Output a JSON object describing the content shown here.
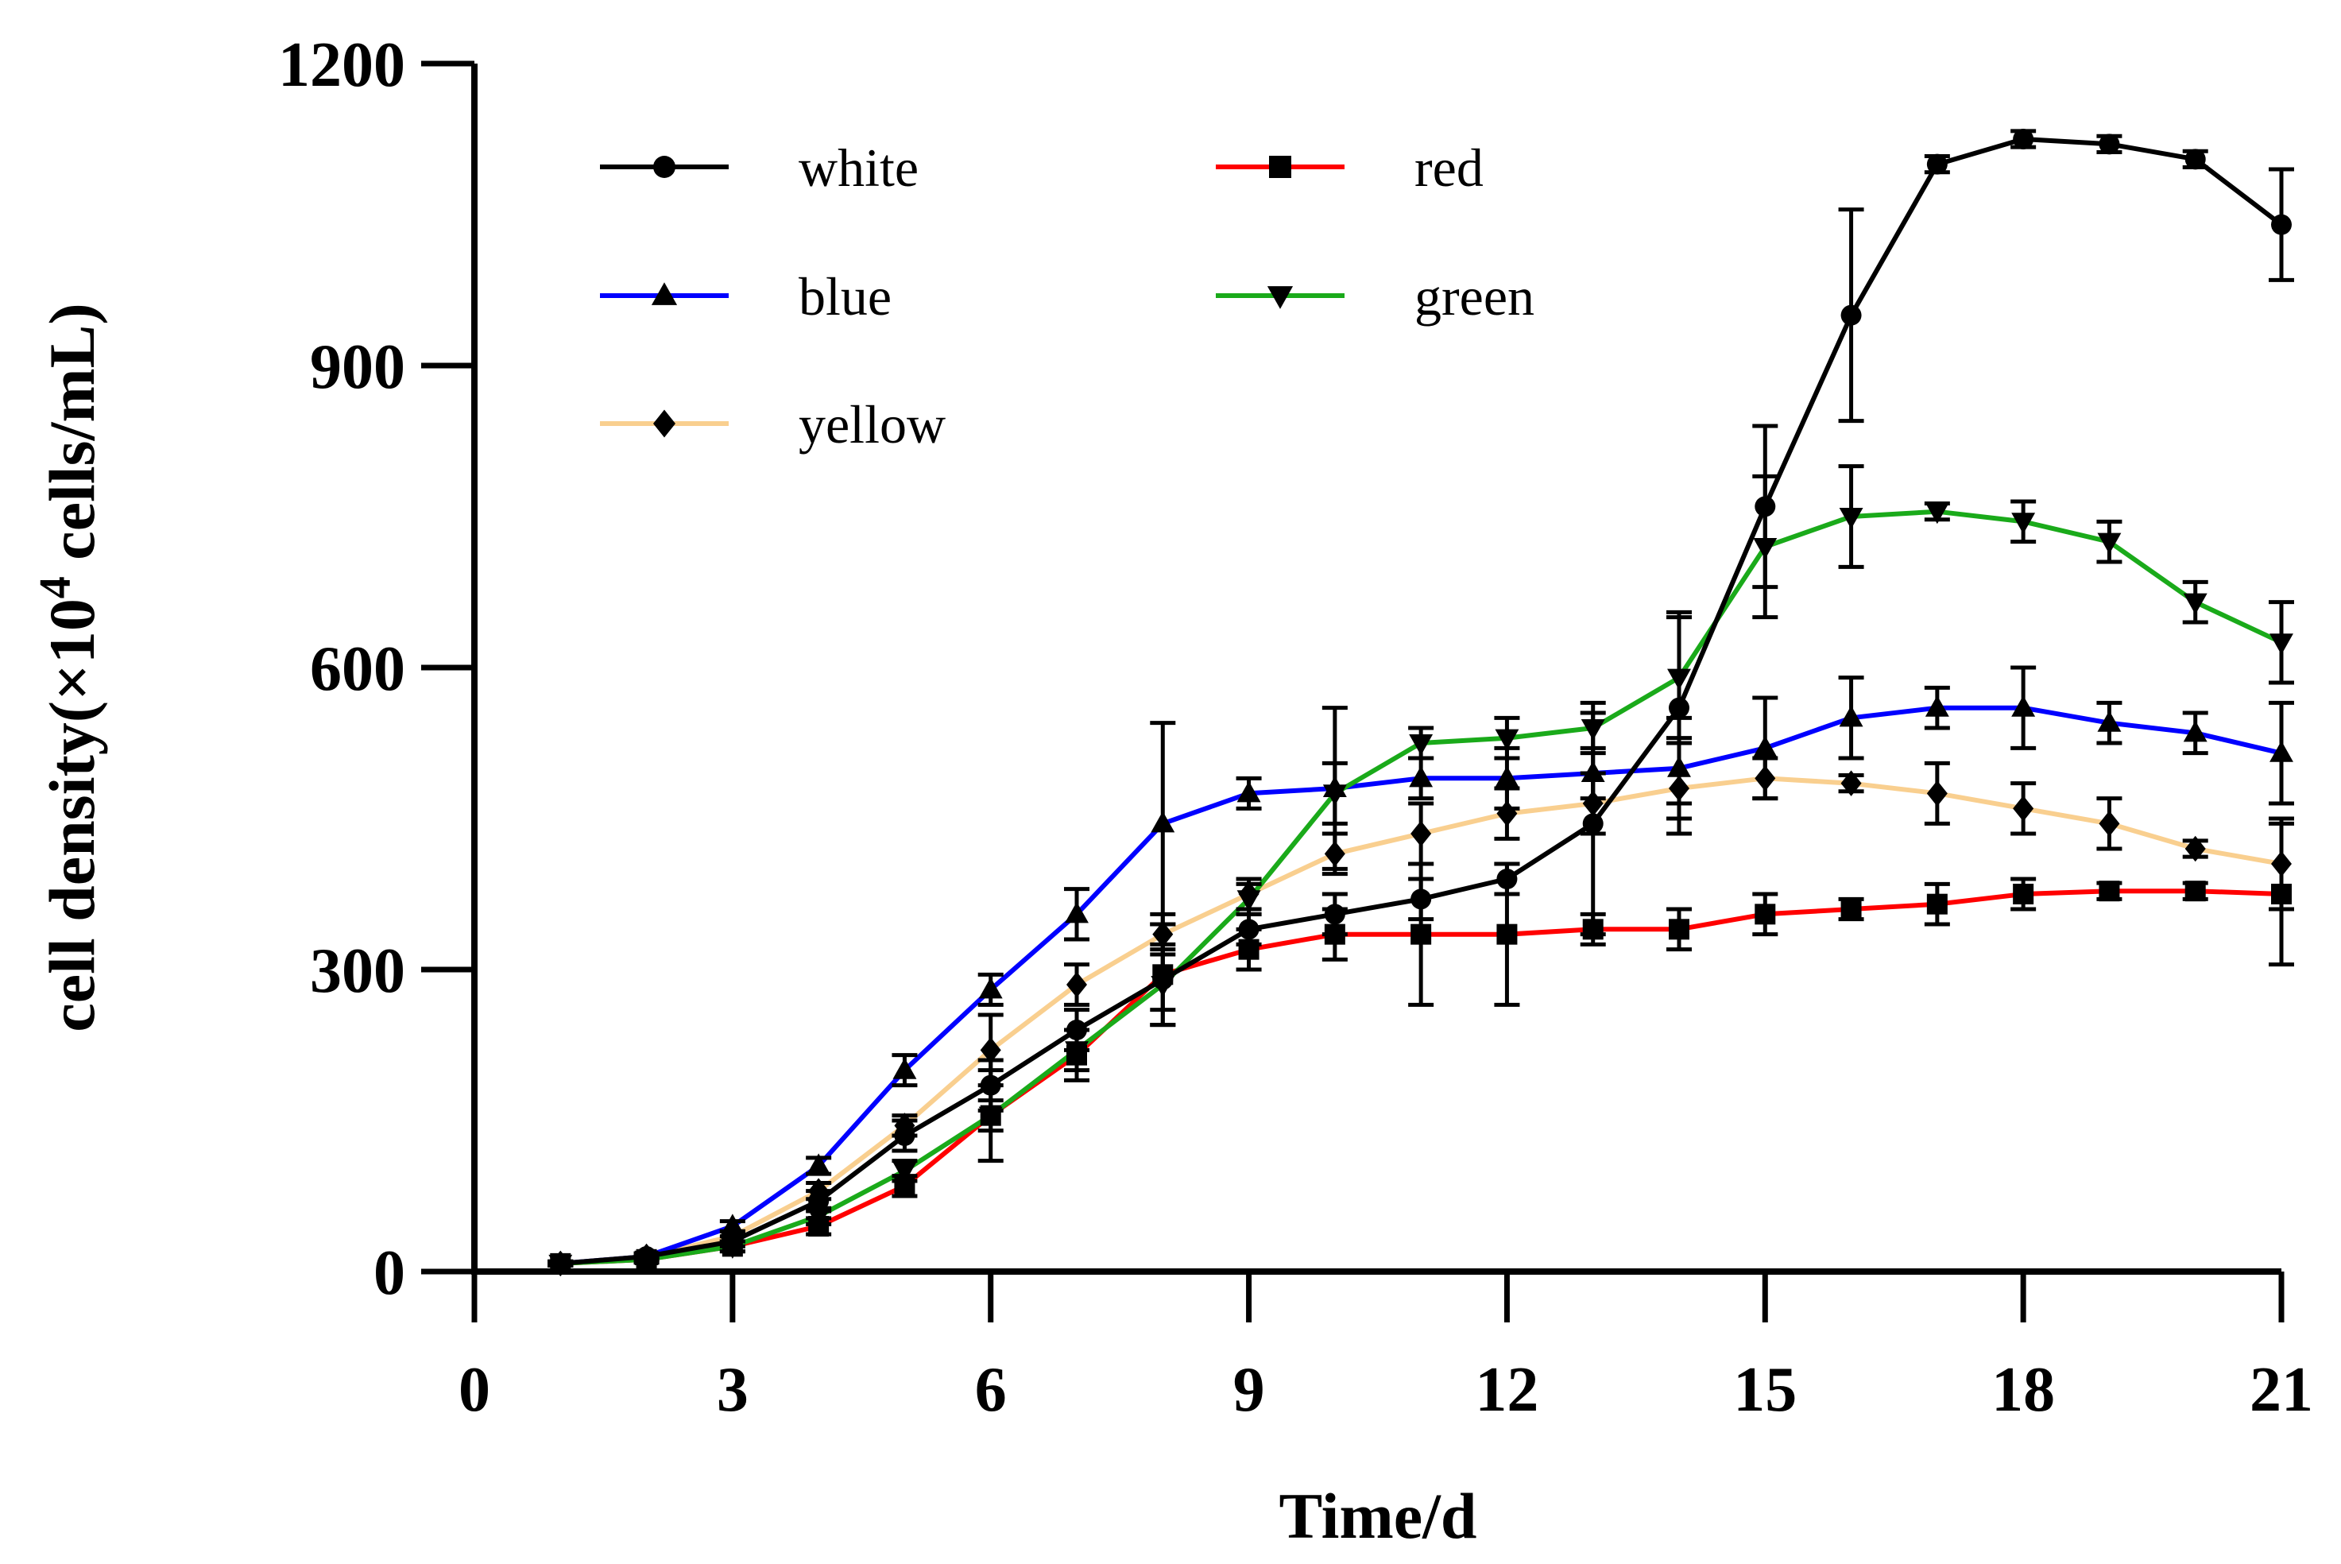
{
  "chart_data": {
    "type": "line",
    "title": "",
    "xlabel": "Time/d",
    "ylabel_main": "cell density(×10",
    "ylabel_sup": "4",
    "ylabel_tail": " cells/mL)",
    "xlim": [
      0,
      21
    ],
    "ylim": [
      0,
      1200
    ],
    "xticks": [
      "0",
      "3",
      "6",
      "9",
      "12",
      "15",
      "18",
      "21"
    ],
    "xtick_values": [
      0,
      3,
      6,
      9,
      12,
      15,
      18,
      21
    ],
    "yticks": [
      "0",
      "300",
      "600",
      "900",
      "1200"
    ],
    "ytick_values": [
      0,
      300,
      600,
      900,
      1200
    ],
    "grid": false,
    "legend_position": "top-left",
    "x": [
      1,
      2,
      3,
      4,
      5,
      6,
      7,
      8,
      9,
      10,
      11,
      12,
      13,
      14,
      15,
      16,
      17,
      18,
      19,
      20,
      21
    ],
    "series": [
      {
        "name": "white",
        "color": "#000000",
        "marker": "circle",
        "values": [
          8,
          15,
          30,
          70,
          135,
          185,
          240,
          290,
          340,
          355,
          370,
          390,
          445,
          560,
          760,
          950,
          1100,
          1125,
          1120,
          1105,
          1040
        ],
        "errors": [
          2,
          3,
          5,
          10,
          15,
          25,
          20,
          30,
          15,
          20,
          20,
          15,
          110,
          95,
          80,
          105,
          8,
          8,
          8,
          8,
          55
        ]
      },
      {
        "name": "red",
        "color": "#ff0000",
        "marker": "square",
        "values": [
          8,
          12,
          25,
          45,
          85,
          155,
          215,
          295,
          320,
          335,
          335,
          335,
          340,
          340,
          355,
          360,
          365,
          375,
          378,
          378,
          375
        ],
        "errors": [
          2,
          3,
          5,
          8,
          10,
          45,
          25,
          50,
          20,
          25,
          70,
          70,
          15,
          20,
          20,
          10,
          20,
          15,
          8,
          8,
          70
        ]
      },
      {
        "name": "blue",
        "color": "#0000ff",
        "marker": "triangle-up",
        "values": [
          8,
          15,
          45,
          105,
          200,
          280,
          355,
          445,
          475,
          480,
          490,
          490,
          495,
          500,
          520,
          550,
          560,
          560,
          545,
          535,
          515
        ],
        "errors": [
          2,
          3,
          5,
          8,
          15,
          15,
          25,
          100,
          15,
          80,
          20,
          30,
          25,
          50,
          50,
          40,
          20,
          40,
          20,
          20,
          50
        ]
      },
      {
        "name": "green",
        "color": "#1aaa1a",
        "marker": "triangle-down",
        "values": [
          8,
          12,
          25,
          55,
          100,
          155,
          220,
          285,
          370,
          475,
          525,
          530,
          540,
          590,
          720,
          750,
          755,
          745,
          725,
          665,
          625
        ],
        "errors": [
          2,
          3,
          5,
          8,
          10,
          15,
          20,
          40,
          15,
          30,
          15,
          20,
          25,
          60,
          70,
          50,
          8,
          20,
          20,
          20,
          40
        ]
      },
      {
        "name": "yellow",
        "color": "#f9cf8f",
        "marker": "diamond",
        "values": [
          8,
          15,
          35,
          80,
          145,
          220,
          285,
          335,
          375,
          415,
          435,
          455,
          465,
          480,
          490,
          485,
          475,
          460,
          445,
          420,
          405
        ],
        "errors": [
          2,
          3,
          5,
          8,
          10,
          35,
          20,
          20,
          15,
          20,
          30,
          25,
          30,
          45,
          20,
          8,
          30,
          25,
          25,
          8,
          45
        ]
      }
    ],
    "legend": [
      {
        "label": "white",
        "series": "white"
      },
      {
        "label": "red",
        "series": "red"
      },
      {
        "label": "blue",
        "series": "blue"
      },
      {
        "label": "green",
        "series": "green"
      },
      {
        "label": "yellow",
        "series": "yellow"
      }
    ]
  }
}
